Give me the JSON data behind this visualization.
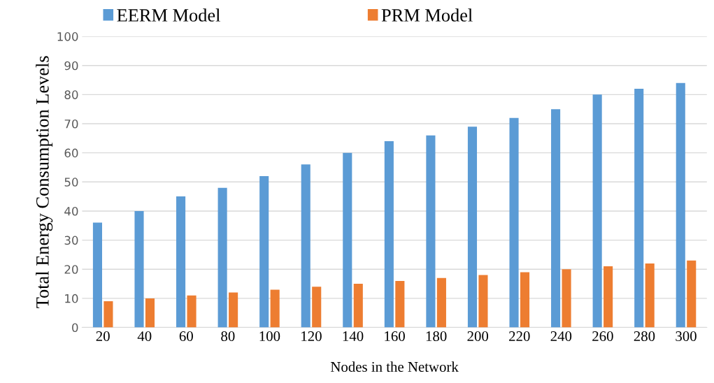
{
  "chart_data": {
    "type": "bar",
    "xlabel": "Nodes in the Network",
    "ylabel": "Total Energy Consumption Levels",
    "categories": [
      "20",
      "40",
      "60",
      "80",
      "100",
      "120",
      "140",
      "160",
      "180",
      "200",
      "220",
      "240",
      "260",
      "280",
      "300"
    ],
    "series": [
      {
        "name": "EERM Model",
        "color": "#5b9bd5",
        "values": [
          36,
          40,
          45,
          48,
          52,
          56,
          60,
          64,
          66,
          69,
          72,
          75,
          80,
          82,
          84
        ]
      },
      {
        "name": "PRM Model",
        "color": "#ed7d31",
        "values": [
          9,
          10,
          11,
          12,
          13,
          14,
          15,
          16,
          17,
          18,
          19,
          20,
          21,
          22,
          23
        ]
      }
    ],
    "ylim": [
      0,
      100
    ],
    "yticks": [
      0,
      10,
      20,
      30,
      40,
      50,
      60,
      70,
      80,
      90,
      100
    ],
    "grid": "y",
    "legend": "top"
  }
}
